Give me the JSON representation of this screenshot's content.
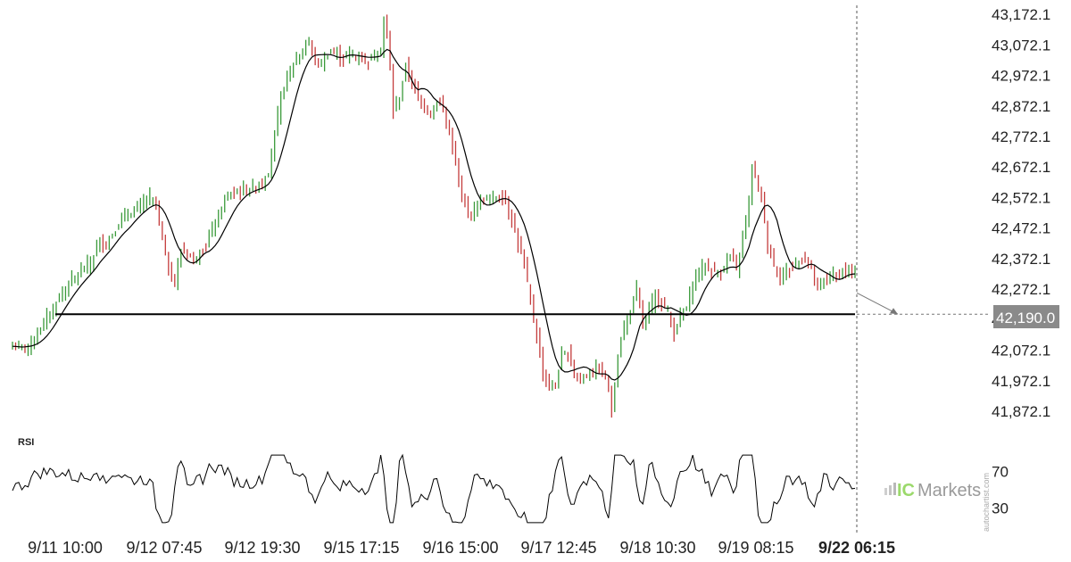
{
  "chart_data": {
    "type": "candlestick",
    "y_axis": {
      "ticks": [
        "43,172.1",
        "43,072.1",
        "42,972.1",
        "42,872.1",
        "42,772.1",
        "42,672.1",
        "42,572.1",
        "42,472.1",
        "42,372.1",
        "42,272.1",
        "42,172.1",
        "42,072.1",
        "41,972.1",
        "41,872.1"
      ],
      "range": [
        41840,
        43190
      ]
    },
    "x_axis": {
      "ticks": [
        "9/11 10:00",
        "9/12 07:45",
        "9/12 19:30",
        "9/15 17:15",
        "9/16 15:00",
        "9/17 12:45",
        "9/18 10:30",
        "9/19 08:15",
        "9/22 06:15"
      ],
      "current_time_label": "9/22 06:15"
    },
    "price_anchors": [
      [
        0,
        42085
      ],
      [
        3,
        42080
      ],
      [
        6,
        42095
      ],
      [
        10,
        42160
      ],
      [
        14,
        42230
      ],
      [
        18,
        42290
      ],
      [
        21,
        42320
      ],
      [
        25,
        42360
      ],
      [
        28,
        42430
      ],
      [
        30,
        42420
      ],
      [
        33,
        42470
      ],
      [
        36,
        42510
      ],
      [
        39,
        42530
      ],
      [
        42,
        42555
      ],
      [
        44,
        42570
      ],
      [
        46,
        42550
      ],
      [
        48,
        42440
      ],
      [
        50,
        42335
      ],
      [
        52,
        42290
      ],
      [
        54,
        42400
      ],
      [
        56,
        42390
      ],
      [
        58,
        42370
      ],
      [
        60,
        42395
      ],
      [
        62,
        42410
      ],
      [
        64,
        42470
      ],
      [
        66,
        42510
      ],
      [
        68,
        42560
      ],
      [
        70,
        42580
      ],
      [
        72,
        42590
      ],
      [
        74,
        42595
      ],
      [
        76,
        42600
      ],
      [
        78,
        42610
      ],
      [
        80,
        42620
      ],
      [
        82,
        42660
      ],
      [
        84,
        42780
      ],
      [
        86,
        42900
      ],
      [
        88,
        42970
      ],
      [
        90,
        43010
      ],
      [
        92,
        43040
      ],
      [
        94,
        43070
      ],
      [
        95,
        43080
      ],
      [
        96,
        43050
      ],
      [
        98,
        43000
      ],
      [
        100,
        43030
      ],
      [
        102,
        43050
      ],
      [
        104,
        43040
      ],
      [
        106,
        43030
      ],
      [
        108,
        43040
      ],
      [
        110,
        43035
      ],
      [
        112,
        43030
      ],
      [
        114,
        43020
      ],
      [
        116,
        43040
      ],
      [
        118,
        43060
      ],
      [
        119,
        43150
      ],
      [
        120,
        43110
      ],
      [
        121,
        42990
      ],
      [
        122,
        42850
      ],
      [
        124,
        42900
      ],
      [
        126,
        43000
      ],
      [
        128,
        42950
      ],
      [
        130,
        42900
      ],
      [
        132,
        42870
      ],
      [
        134,
        42850
      ],
      [
        136,
        42890
      ],
      [
        138,
        42860
      ],
      [
        140,
        42780
      ],
      [
        142,
        42680
      ],
      [
        144,
        42570
      ],
      [
        146,
        42510
      ],
      [
        148,
        42540
      ],
      [
        150,
        42560
      ],
      [
        152,
        42570
      ],
      [
        154,
        42570
      ],
      [
        156,
        42580
      ],
      [
        158,
        42560
      ],
      [
        160,
        42500
      ],
      [
        162,
        42420
      ],
      [
        164,
        42350
      ],
      [
        166,
        42230
      ],
      [
        168,
        42120
      ],
      [
        170,
        42000
      ],
      [
        172,
        41950
      ],
      [
        174,
        41960
      ],
      [
        176,
        42050
      ],
      [
        178,
        42060
      ],
      [
        180,
        42000
      ],
      [
        182,
        41980
      ],
      [
        184,
        41990
      ],
      [
        186,
        42000
      ],
      [
        188,
        42010
      ],
      [
        190,
        41985
      ],
      [
        192,
        41880
      ],
      [
        194,
        42050
      ],
      [
        196,
        42150
      ],
      [
        198,
        42200
      ],
      [
        200,
        42270
      ],
      [
        202,
        42150
      ],
      [
        204,
        42200
      ],
      [
        206,
        42250
      ],
      [
        208,
        42230
      ],
      [
        210,
        42200
      ],
      [
        212,
        42130
      ],
      [
        214,
        42180
      ],
      [
        216,
        42210
      ],
      [
        218,
        42290
      ],
      [
        220,
        42330
      ],
      [
        222,
        42350
      ],
      [
        224,
        42330
      ],
      [
        226,
        42320
      ],
      [
        228,
        42350
      ],
      [
        230,
        42380
      ],
      [
        232,
        42330
      ],
      [
        234,
        42450
      ],
      [
        236,
        42560
      ],
      [
        237,
        42680
      ],
      [
        238,
        42640
      ],
      [
        240,
        42570
      ],
      [
        242,
        42420
      ],
      [
        244,
        42350
      ],
      [
        246,
        42310
      ],
      [
        248,
        42330
      ],
      [
        250,
        42350
      ],
      [
        252,
        42360
      ],
      [
        254,
        42380
      ],
      [
        256,
        42340
      ],
      [
        258,
        42270
      ],
      [
        260,
        42300
      ],
      [
        262,
        42320
      ],
      [
        264,
        42310
      ],
      [
        266,
        42330
      ],
      [
        268,
        42330
      ],
      [
        270,
        42320
      ]
    ],
    "support_level": 42190,
    "projection_target": 42190,
    "current_price_label": "42,190.0",
    "ma_period": 9,
    "indicator": {
      "name": "RSI",
      "ticks": [
        "70",
        "30"
      ],
      "levels": [
        70,
        30
      ]
    },
    "colors": {
      "up": "#3a9a3a",
      "down": "#c43c3c",
      "ma": "#000000",
      "support": "#000000",
      "rsi": "#000000",
      "price_tag_bg": "#8a8a8a"
    },
    "watermark": "autochartist.com",
    "logo": {
      "ic": "IC",
      "markets": "Markets"
    }
  }
}
